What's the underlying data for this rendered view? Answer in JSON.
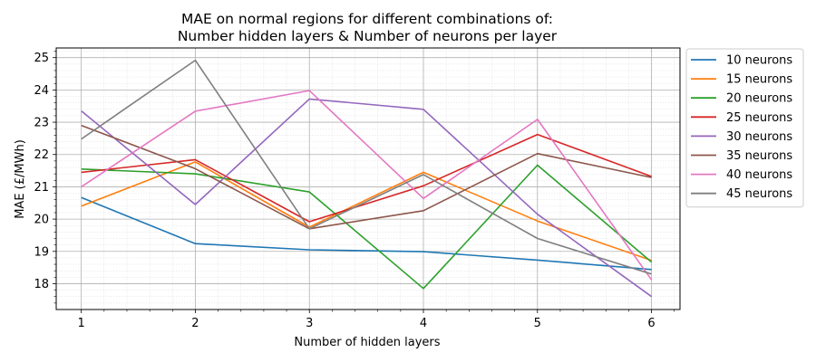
{
  "chart_data": {
    "type": "line",
    "title": "MAE on normal regions for different combinations of:",
    "subtitle": "Number hidden layers & Number of neurons per layer",
    "xlabel": "Number of hidden layers",
    "ylabel": "MAE (£/MWh)",
    "x": [
      1,
      2,
      3,
      4,
      5,
      6
    ],
    "xlim": [
      0.78,
      6.25
    ],
    "ylim": [
      17.2,
      25.3
    ],
    "xticks": [
      "1",
      "2",
      "3",
      "4",
      "5",
      "6"
    ],
    "yticks": [
      "18",
      "19",
      "20",
      "21",
      "22",
      "23",
      "24",
      "25"
    ],
    "grid": true,
    "legend_position": "outside-right",
    "series": [
      {
        "name": "10 neurons",
        "color": "#1f77b4",
        "values": [
          20.67,
          19.24,
          19.05,
          18.99,
          18.73,
          18.44
        ]
      },
      {
        "name": "15 neurons",
        "color": "#ff7f0e",
        "values": [
          20.4,
          21.77,
          19.75,
          21.45,
          19.94,
          18.72
        ]
      },
      {
        "name": "20 neurons",
        "color": "#2ca02c",
        "values": [
          21.55,
          21.4,
          20.84,
          17.85,
          21.67,
          18.67
        ]
      },
      {
        "name": "25 neurons",
        "color": "#d62728",
        "values": [
          21.45,
          21.84,
          19.92,
          21.03,
          22.62,
          21.32
        ]
      },
      {
        "name": "30 neurons",
        "color": "#9467bd",
        "values": [
          23.35,
          20.45,
          23.72,
          23.4,
          20.15,
          17.6
        ]
      },
      {
        "name": "35 neurons",
        "color": "#8c564b",
        "values": [
          22.9,
          21.56,
          19.7,
          20.26,
          22.03,
          21.29
        ]
      },
      {
        "name": "40 neurons",
        "color": "#e377c2",
        "values": [
          21.0,
          23.34,
          23.98,
          20.64,
          23.09,
          18.12
        ]
      },
      {
        "name": "45 neurons",
        "color": "#7f7f7f",
        "values": [
          22.48,
          24.92,
          19.7,
          21.38,
          19.4,
          18.3
        ]
      }
    ]
  }
}
